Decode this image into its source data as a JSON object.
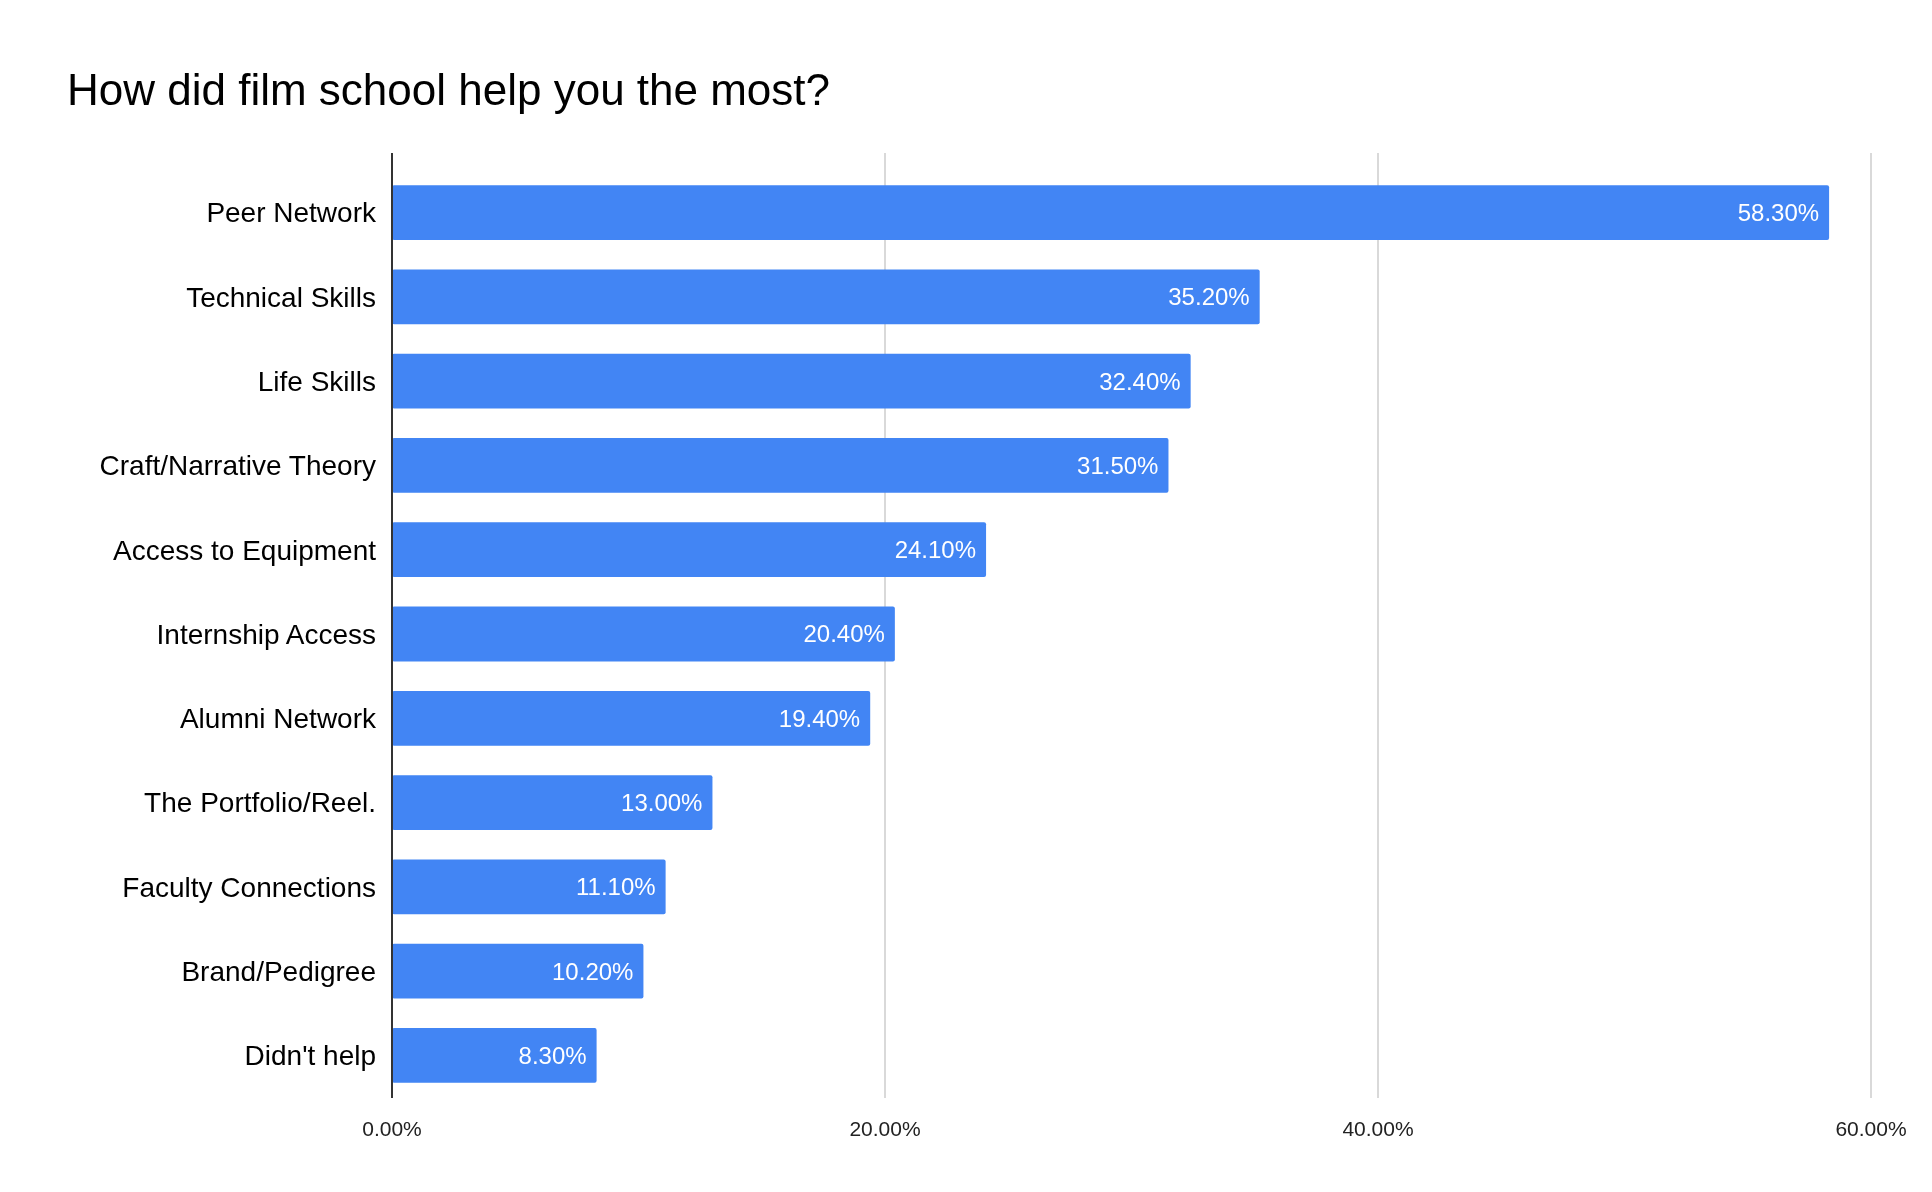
{
  "chart_data": {
    "type": "bar",
    "title": "How did film school help you the most?",
    "orientation": "horizontal",
    "categories": [
      "Peer Network",
      "Technical Skills",
      "Life Skills",
      "Craft/Narrative Theory",
      "Access to Equipment",
      "Internship Access",
      "Alumni Network",
      "The Portfolio/Reel.",
      "Faculty Connections",
      "Brand/Pedigree",
      "Didn't help"
    ],
    "values": [
      58.3,
      35.2,
      32.4,
      31.5,
      24.1,
      20.4,
      19.4,
      13.0,
      11.1,
      10.2,
      8.3
    ],
    "value_labels": [
      "58.30%",
      "35.20%",
      "32.40%",
      "31.50%",
      "24.10%",
      "20.40%",
      "19.40%",
      "13.00%",
      "11.10%",
      "10.20%",
      "8.30%"
    ],
    "color": "#4285f4",
    "xlim": [
      0,
      60
    ],
    "xticks": [
      {
        "value": 0,
        "label": "0.00%"
      },
      {
        "value": 20,
        "label": "20.00%"
      },
      {
        "value": 40,
        "label": "40.00%"
      },
      {
        "value": 60,
        "label": "60.00%"
      }
    ],
    "grid": "x"
  }
}
